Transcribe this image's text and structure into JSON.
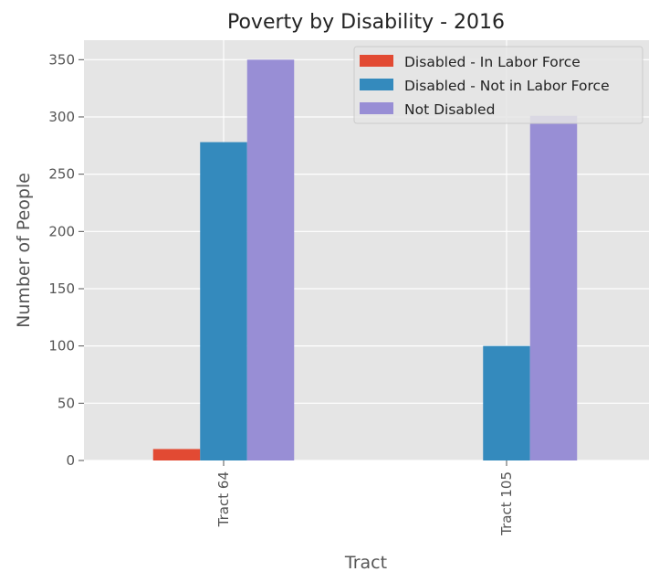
{
  "chart_data": {
    "type": "bar",
    "title": "Poverty by Disability - 2016",
    "xlabel": "Tract",
    "ylabel": "Number of People",
    "categories": [
      "Tract 64",
      "Tract 105"
    ],
    "series": [
      {
        "name": "Disabled - In Labor Force",
        "color": "#E24A33",
        "values": [
          10,
          0
        ]
      },
      {
        "name": "Disabled - Not in Labor Force",
        "color": "#348ABD",
        "values": [
          278,
          100
        ]
      },
      {
        "name": "Not Disabled",
        "color": "#988ED5",
        "values": [
          350,
          301
        ]
      }
    ],
    "ylim": [
      0,
      367
    ],
    "yticks": [
      0,
      50,
      100,
      150,
      200,
      250,
      300,
      350
    ],
    "grid": true,
    "legend_position": "top-right",
    "style": {
      "background": "#E5E5E5",
      "grid_color": "#FFFFFF"
    }
  }
}
